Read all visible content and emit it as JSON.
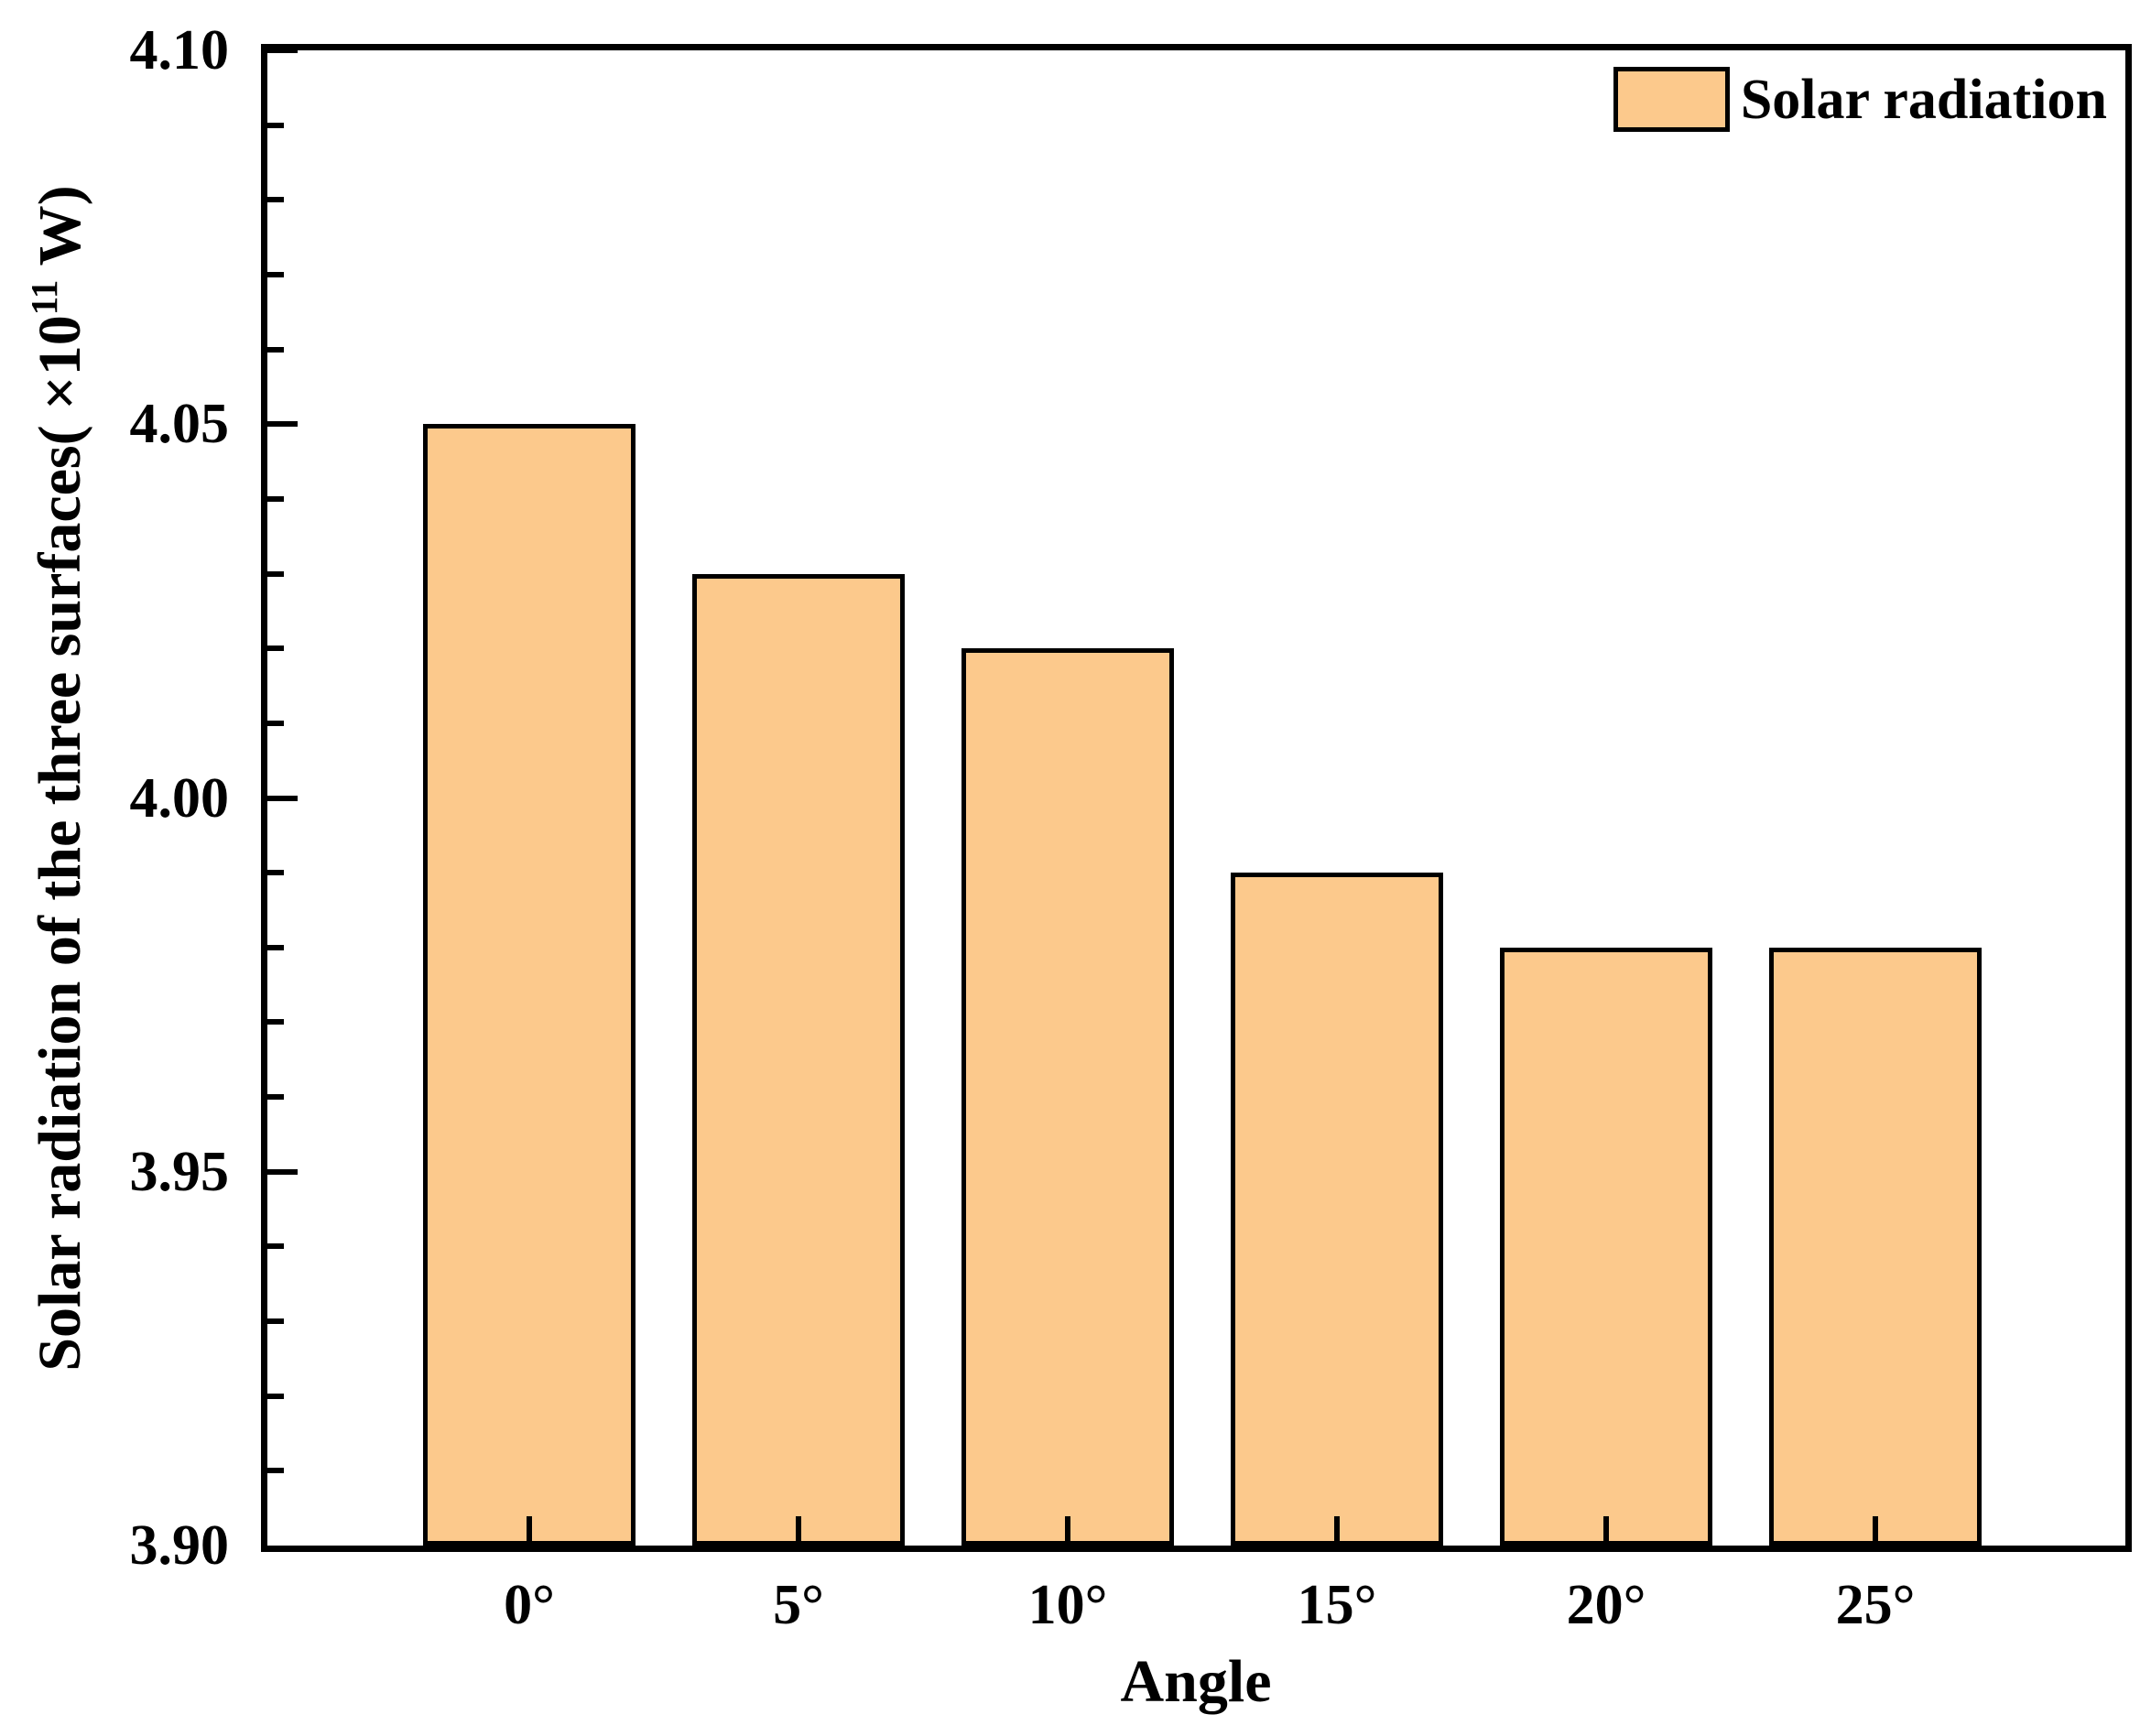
{
  "chart_data": {
    "type": "bar",
    "categories": [
      "0°",
      "5°",
      "10°",
      "15°",
      "20°",
      "25°"
    ],
    "values": [
      4.05,
      4.03,
      4.02,
      3.99,
      3.98,
      3.98
    ],
    "series_name": "Solar radiation",
    "title": "",
    "xlabel": "Angle",
    "ylabel": "Solar radiation of the three surfaces( ×10¹¹ W)",
    "ylabel_parts": {
      "prefix": "Solar radiation of the three surfaces( ×10",
      "superscript": "11",
      "suffix": " W)"
    },
    "ylim": [
      3.9,
      4.1
    ],
    "ytick_values": [
      3.9,
      3.95,
      4.0,
      4.05,
      4.1
    ],
    "ytick_labels": [
      "3.90",
      "3.95",
      "4.00",
      "4.05",
      "4.10"
    ],
    "ytick_minor_step": 0.01,
    "grid": false,
    "legend": {
      "label": "Solar radiation",
      "position": "top-right"
    },
    "colors": {
      "bar_fill": "#FCC98C",
      "bar_border": "#000000",
      "axis": "#000000",
      "background": "#ffffff"
    }
  }
}
